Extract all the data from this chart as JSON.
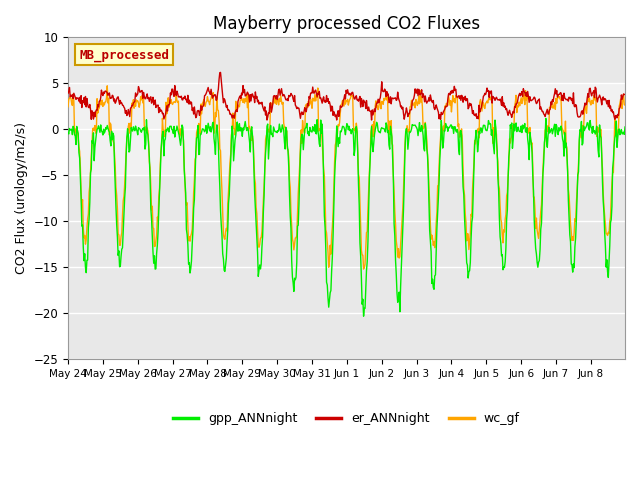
{
  "title": "Mayberry processed CO2 Fluxes",
  "ylabel": "CO2 Flux (urology/m2/s)",
  "ylim": [
    -25,
    10
  ],
  "yticks": [
    -25,
    -20,
    -15,
    -10,
    -5,
    0,
    5,
    10
  ],
  "fig_bg_color": "#ffffff",
  "plot_bg_color": "#e8e8e8",
  "legend_entries": [
    "gpp_ANNnight",
    "er_ANNnight",
    "wc_gf"
  ],
  "legend_colors": [
    "#00ee00",
    "#cc0000",
    "#ffa500"
  ],
  "annotation_text": "MB_processed",
  "annotation_box_facecolor": "#ffffcc",
  "annotation_box_edgecolor": "#cc9900",
  "annotation_text_color": "#bb0000",
  "line_colors": {
    "gpp": "#00ee00",
    "er": "#cc0000",
    "wc": "#ffa500"
  },
  "line_width": 1.0,
  "grid_color": "#ffffff",
  "num_days": 16,
  "points_per_day": 48,
  "white_band_low": -5,
  "white_band_high": 5
}
